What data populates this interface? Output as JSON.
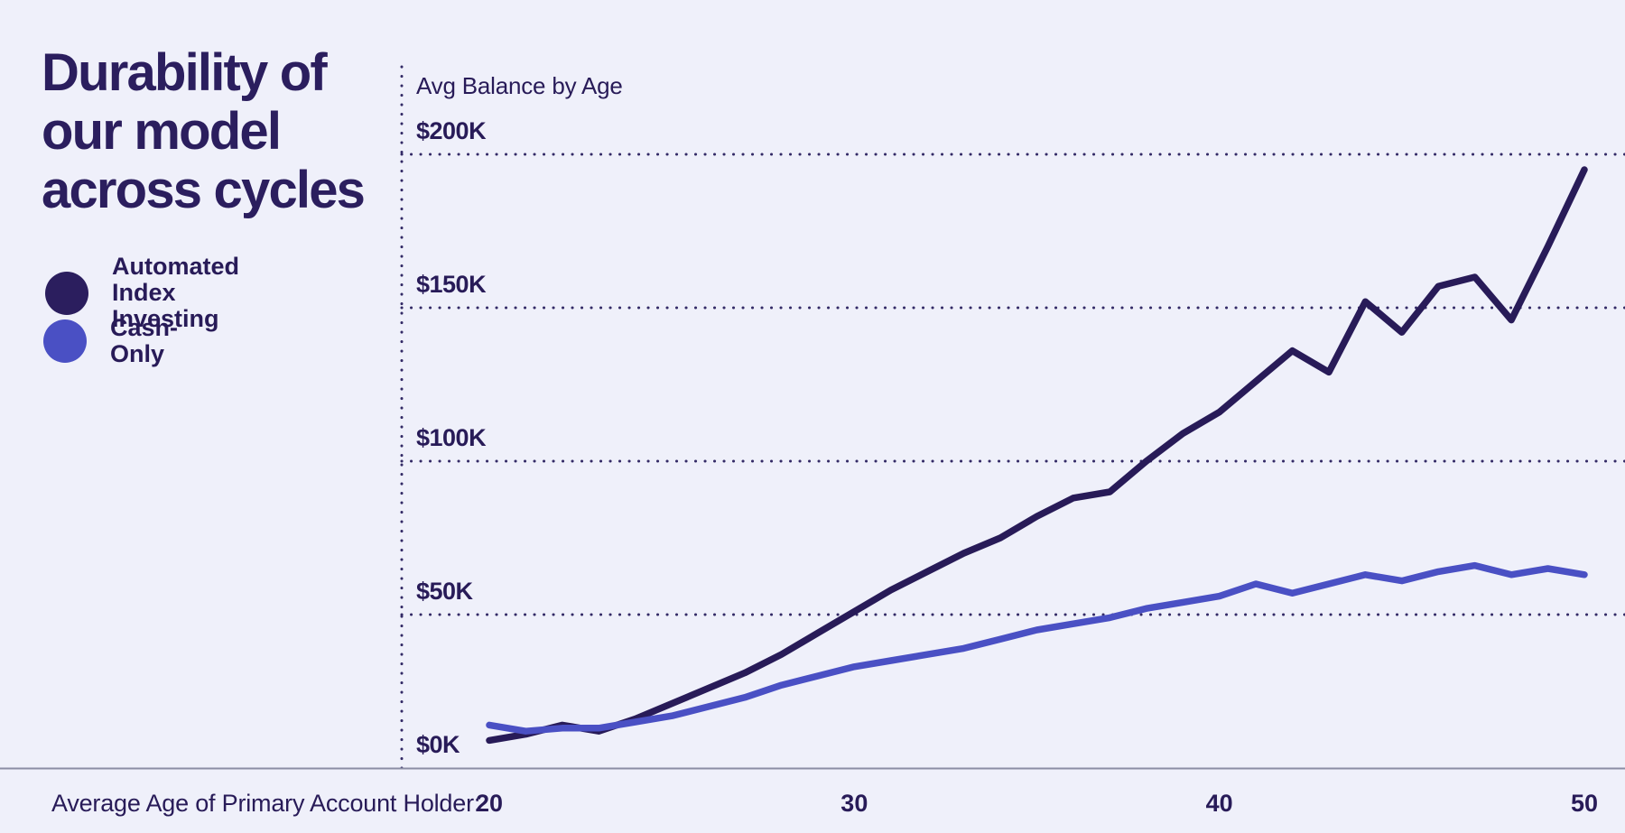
{
  "page": {
    "background": "#eff0fa",
    "ink": "#2b1e5e",
    "axis_line_color": "#8b8da4",
    "grid_dot_color": "#332a66"
  },
  "title": {
    "lines": [
      "Durability of",
      "our model",
      "across cycles"
    ]
  },
  "legend": {
    "items": [
      {
        "name": "Automated Index Investing",
        "lines": [
          "Automated",
          "Index Investing"
        ],
        "color": "#2b1e5e"
      },
      {
        "name": "Cash-Only",
        "lines": [
          "Cash-Only"
        ],
        "color": "#4a50c4"
      }
    ]
  },
  "chart_data": {
    "type": "line",
    "title": "Avg Balance by Age",
    "x_axis_title": "Average Age of Primary Account Holder:",
    "units": "USD thousands",
    "grid": "dotted horizontal gridlines + dotted left axis",
    "legend_position": "left",
    "xlim": [
      20,
      50
    ],
    "ylim": [
      0,
      212
    ],
    "x_ticks": [
      20,
      30,
      40,
      50
    ],
    "y_ticks": [
      {
        "label": "$200K",
        "value": 200
      },
      {
        "label": "$150K",
        "value": 150
      },
      {
        "label": "$100K",
        "value": 100
      },
      {
        "label": "$50K",
        "value": 50
      },
      {
        "label": "$0K",
        "value": 0
      }
    ],
    "x": [
      20,
      21,
      22,
      23,
      24,
      25,
      26,
      27,
      28,
      29,
      30,
      31,
      32,
      33,
      34,
      35,
      36,
      37,
      38,
      39,
      40,
      41,
      42,
      43,
      44,
      45,
      46,
      47,
      48,
      49,
      50
    ],
    "series": [
      {
        "name": "Automated Index Investing",
        "color": "#281b58",
        "values": [
          9,
          11,
          14,
          12,
          16,
          21,
          26,
          31,
          37,
          44,
          51,
          58,
          64,
          70,
          75,
          82,
          88,
          90,
          100,
          109,
          116,
          126,
          136,
          129,
          152,
          142,
          157,
          160,
          146,
          170,
          195
        ]
      },
      {
        "name": "Cash-Only",
        "color": "#4a50c4",
        "values": [
          14,
          12,
          13,
          13,
          15,
          17,
          20,
          23,
          27,
          30,
          33,
          35,
          37,
          39,
          42,
          45,
          47,
          49,
          52,
          54,
          56,
          60,
          57,
          60,
          63,
          61,
          64,
          66,
          63,
          65,
          63
        ]
      }
    ]
  }
}
